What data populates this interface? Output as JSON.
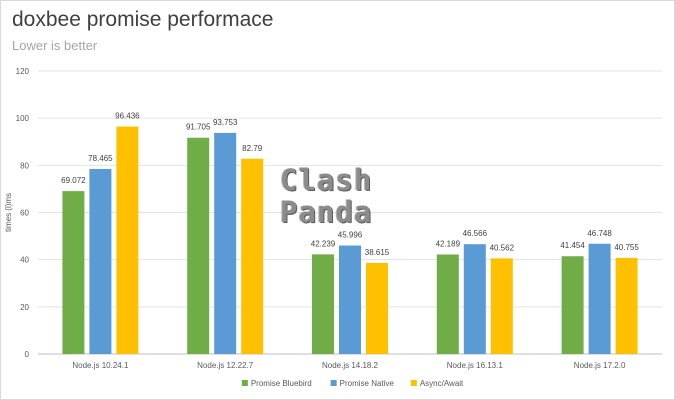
{
  "chart_data": {
    "type": "bar",
    "title": "doxbee promise performace",
    "subtitle": "Lower is better",
    "ylabel": "times (l)ms",
    "xlabel": "",
    "ylim": [
      0,
      120
    ],
    "yticks": [
      0,
      20,
      40,
      60,
      80,
      100,
      120
    ],
    "grid": true,
    "legend_position": "bottom",
    "categories": [
      "Node.js 10.24.1",
      "Node.js 12.22.7",
      "Node.js 14.18.2",
      "Node.js 16.13.1",
      "Node.js 17.2.0"
    ],
    "series": [
      {
        "name": "Promise Bluebird",
        "color": "#70ad47",
        "values": [
          69.072,
          91.705,
          42.239,
          42.189,
          41.454
        ]
      },
      {
        "name": "Promise Native",
        "color": "#5b9bd5",
        "values": [
          78.465,
          93.753,
          45.996,
          46.566,
          46.748
        ]
      },
      {
        "name": "Async/Await",
        "color": "#ffc000",
        "values": [
          96.436,
          82.79,
          38.615,
          40.562,
          40.755
        ]
      }
    ]
  },
  "watermark": {
    "line1": "Clash",
    "line2": "Panda"
  }
}
